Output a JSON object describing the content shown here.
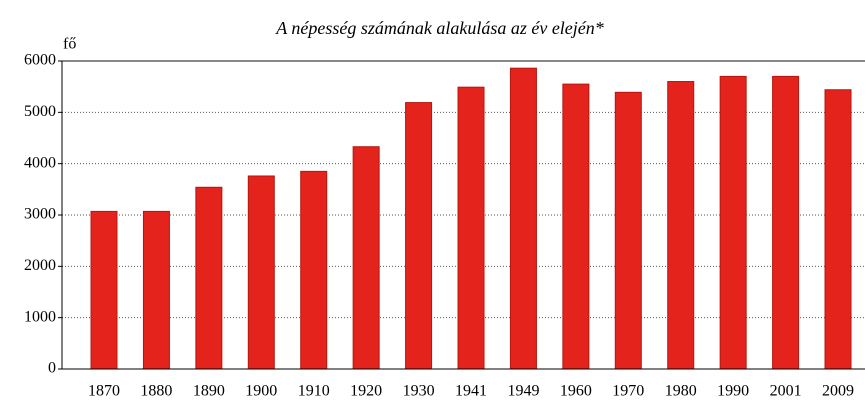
{
  "chart_data": {
    "type": "bar",
    "title": "A népesség számának alakulása az év elején*",
    "y_label": "fő",
    "categories": [
      "1870",
      "1880",
      "1890",
      "1900",
      "1910",
      "1920",
      "1930",
      "1941",
      "1949",
      "1960",
      "1970",
      "1980",
      "1990",
      "2001",
      "2009"
    ],
    "values": [
      3070,
      3070,
      3540,
      3760,
      3850,
      4330,
      5190,
      5490,
      5860,
      5550,
      5390,
      5600,
      5700,
      5700,
      5440
    ],
    "color": "#e3231c",
    "ylim": [
      0,
      6000
    ],
    "yticks": [
      0,
      1000,
      2000,
      3000,
      4000,
      5000,
      6000
    ],
    "grid": true
  }
}
